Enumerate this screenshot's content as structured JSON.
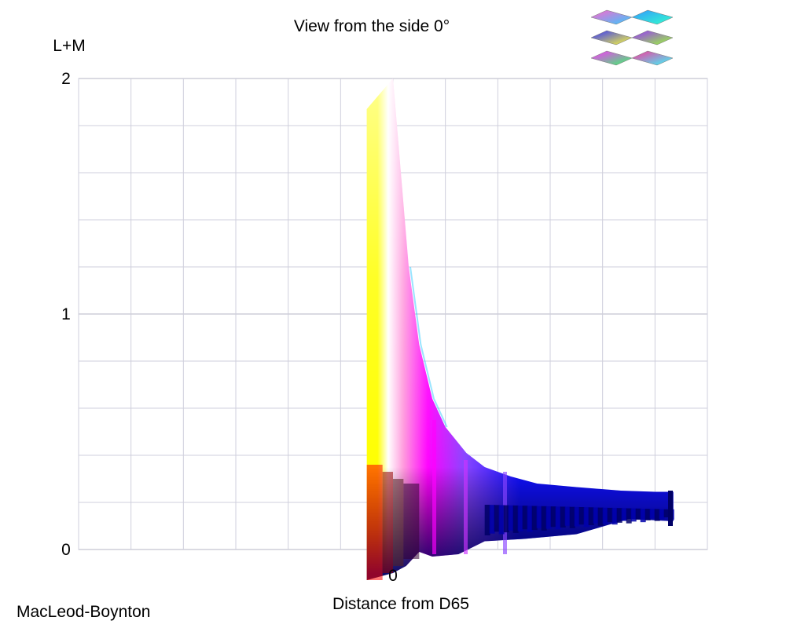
{
  "title": "View from the side 0°",
  "space_name": "MacLeod-Boynton",
  "thumbnail_icon": "color-solid-thumbnails-icon",
  "chart_data": {
    "type": "area",
    "title": "View from the side 0°",
    "xlabel": "Distance from D65",
    "ylabel": "L+M",
    "y_ticks": [
      {
        "value": 0,
        "label": "0"
      },
      {
        "value": 1,
        "label": "1"
      },
      {
        "value": 2,
        "label": "2"
      }
    ],
    "x_ticks": [
      {
        "value": 0,
        "label": "0"
      }
    ],
    "xlim": [
      -1.2,
      1.2
    ],
    "ylim": [
      0,
      2
    ],
    "grid": true,
    "minor_grid_step": 0.2,
    "major_grid_step": 1,
    "x_grid_step": 0.2,
    "solid": {
      "upper_envelope": [
        {
          "x": 0.0,
          "y": 2.0
        },
        {
          "x": 0.03,
          "y": 1.6
        },
        {
          "x": 0.06,
          "y": 1.2
        },
        {
          "x": 0.1,
          "y": 0.87
        },
        {
          "x": 0.15,
          "y": 0.64
        },
        {
          "x": 0.2,
          "y": 0.52
        },
        {
          "x": 0.28,
          "y": 0.41
        },
        {
          "x": 0.35,
          "y": 0.35
        },
        {
          "x": 0.45,
          "y": 0.31
        },
        {
          "x": 0.55,
          "y": 0.28
        },
        {
          "x": 0.7,
          "y": 0.265
        },
        {
          "x": 0.87,
          "y": 0.25
        },
        {
          "x": 1.0,
          "y": 0.245
        },
        {
          "x": 1.07,
          "y": 0.245
        }
      ],
      "lower_envelope": [
        {
          "x": 1.07,
          "y": 0.12
        },
        {
          "x": 0.9,
          "y": 0.13
        },
        {
          "x": 0.7,
          "y": 0.065
        },
        {
          "x": 0.5,
          "y": 0.045
        },
        {
          "x": 0.35,
          "y": 0.035
        },
        {
          "x": 0.25,
          "y": -0.02
        },
        {
          "x": 0.15,
          "y": -0.03
        },
        {
          "x": 0.1,
          "y": -0.01
        },
        {
          "x": 0.05,
          "y": -0.07
        },
        {
          "x": 0.0,
          "y": -0.1
        },
        {
          "x": -0.1,
          "y": -0.13
        }
      ],
      "left_edge_x": -0.1,
      "left_edge_top_y": 1.87,
      "colors": {
        "yellow": "#ffff00",
        "white": "#ffffff",
        "pink": "#ff99dd",
        "magenta": "#ff00ff",
        "violet": "#8844ff",
        "blue": "#1010ff",
        "navy": "#000066",
        "red": "#ff0000",
        "black": "#000000"
      }
    }
  }
}
